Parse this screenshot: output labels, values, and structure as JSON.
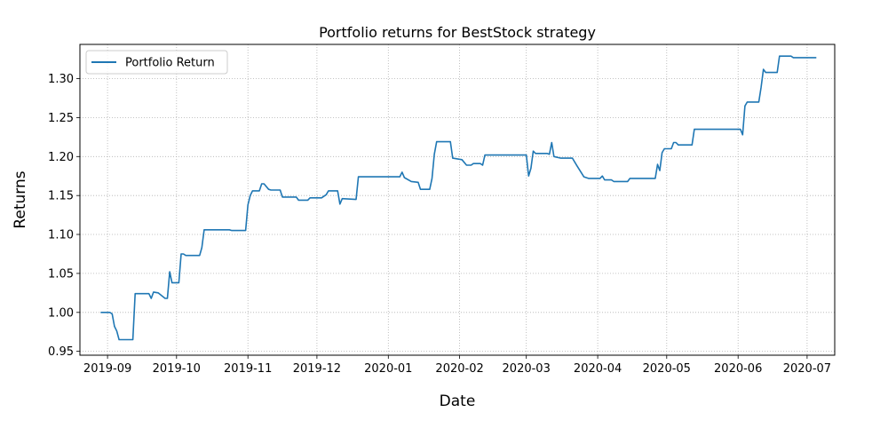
{
  "chart_data": {
    "type": "line",
    "title": "Portfolio returns for BestStock strategy",
    "xlabel": "Date",
    "ylabel": "Returns",
    "xlim": [
      "2019-08-20",
      "2020-07-13"
    ],
    "ylim": [
      0.945,
      1.344
    ],
    "yticks": [
      0.95,
      1.0,
      1.05,
      1.1,
      1.15,
      1.2,
      1.25,
      1.3
    ],
    "ytick_labels": [
      "0.95",
      "1.00",
      "1.05",
      "1.10",
      "1.15",
      "1.20",
      "1.25",
      "1.30"
    ],
    "xticks": [
      "2019-09-01",
      "2019-10-01",
      "2019-11-01",
      "2019-12-01",
      "2020-01-01",
      "2020-02-01",
      "2020-03-01",
      "2020-04-01",
      "2020-05-01",
      "2020-06-01",
      "2020-07-01"
    ],
    "xtick_labels": [
      "2019-09",
      "2019-10",
      "2019-11",
      "2019-12",
      "2020-01",
      "2020-02",
      "2020-03",
      "2020-04",
      "2020-05",
      "2020-06",
      "2020-07"
    ],
    "grid": true,
    "legend_position": "top-left",
    "series": [
      {
        "name": "Portfolio Return",
        "color": "#1f77b4",
        "points": [
          [
            "2019-08-29",
            1.0
          ],
          [
            "2019-09-02",
            1.0
          ],
          [
            "2019-09-03",
            0.998
          ],
          [
            "2019-09-04",
            0.982
          ],
          [
            "2019-09-05",
            0.976
          ],
          [
            "2019-09-06",
            0.965
          ],
          [
            "2019-09-09",
            0.965
          ],
          [
            "2019-09-12",
            0.965
          ],
          [
            "2019-09-13",
            1.024
          ],
          [
            "2019-09-16",
            1.024
          ],
          [
            "2019-09-19",
            1.024
          ],
          [
            "2019-09-20",
            1.018
          ],
          [
            "2019-09-21",
            1.026
          ],
          [
            "2019-09-23",
            1.025
          ],
          [
            "2019-09-26",
            1.018
          ],
          [
            "2019-09-27",
            1.018
          ],
          [
            "2019-09-28",
            1.052
          ],
          [
            "2019-09-29",
            1.038
          ],
          [
            "2019-10-01",
            1.038
          ],
          [
            "2019-10-02",
            1.038
          ],
          [
            "2019-10-03",
            1.075
          ],
          [
            "2019-10-04",
            1.075
          ],
          [
            "2019-10-05",
            1.073
          ],
          [
            "2019-10-08",
            1.073
          ],
          [
            "2019-10-11",
            1.073
          ],
          [
            "2019-10-12",
            1.083
          ],
          [
            "2019-10-13",
            1.106
          ],
          [
            "2019-10-17",
            1.106
          ],
          [
            "2019-10-24",
            1.106
          ],
          [
            "2019-10-25",
            1.105
          ],
          [
            "2019-10-31",
            1.105
          ],
          [
            "2019-11-01",
            1.138
          ],
          [
            "2019-11-02",
            1.15
          ],
          [
            "2019-11-03",
            1.156
          ],
          [
            "2019-11-06",
            1.156
          ],
          [
            "2019-11-07",
            1.165
          ],
          [
            "2019-11-08",
            1.165
          ],
          [
            "2019-11-10",
            1.158
          ],
          [
            "2019-11-11",
            1.157
          ],
          [
            "2019-11-15",
            1.157
          ],
          [
            "2019-11-16",
            1.148
          ],
          [
            "2019-11-22",
            1.148
          ],
          [
            "2019-11-23",
            1.144
          ],
          [
            "2019-11-27",
            1.144
          ],
          [
            "2019-11-28",
            1.147
          ],
          [
            "2019-12-03",
            1.147
          ],
          [
            "2019-12-05",
            1.151
          ],
          [
            "2019-12-06",
            1.156
          ],
          [
            "2019-12-10",
            1.156
          ],
          [
            "2019-12-11",
            1.139
          ],
          [
            "2019-12-12",
            1.146
          ],
          [
            "2019-12-18",
            1.145
          ],
          [
            "2019-12-19",
            1.174
          ],
          [
            "2020-01-06",
            1.174
          ],
          [
            "2020-01-07",
            1.18
          ],
          [
            "2020-01-08",
            1.173
          ],
          [
            "2020-01-11",
            1.168
          ],
          [
            "2020-01-14",
            1.167
          ],
          [
            "2020-01-15",
            1.158
          ],
          [
            "2020-01-19",
            1.158
          ],
          [
            "2020-01-20",
            1.172
          ],
          [
            "2020-01-21",
            1.203
          ],
          [
            "2020-01-22",
            1.219
          ],
          [
            "2020-01-28",
            1.219
          ],
          [
            "2020-01-29",
            1.198
          ],
          [
            "2020-02-02",
            1.196
          ],
          [
            "2020-02-04",
            1.189
          ],
          [
            "2020-02-06",
            1.189
          ],
          [
            "2020-02-07",
            1.191
          ],
          [
            "2020-02-10",
            1.191
          ],
          [
            "2020-02-11",
            1.189
          ],
          [
            "2020-02-12",
            1.202
          ],
          [
            "2020-02-15",
            1.202
          ],
          [
            "2020-03-01",
            1.202
          ],
          [
            "2020-03-02",
            1.175
          ],
          [
            "2020-03-03",
            1.185
          ],
          [
            "2020-03-04",
            1.207
          ],
          [
            "2020-03-05",
            1.204
          ],
          [
            "2020-03-10",
            1.204
          ],
          [
            "2020-03-11",
            1.203
          ],
          [
            "2020-03-12",
            1.218
          ],
          [
            "2020-03-13",
            1.2
          ],
          [
            "2020-03-16",
            1.198
          ],
          [
            "2020-03-21",
            1.198
          ],
          [
            "2020-03-23",
            1.188
          ],
          [
            "2020-03-26",
            1.174
          ],
          [
            "2020-03-28",
            1.172
          ],
          [
            "2020-04-02",
            1.172
          ],
          [
            "2020-04-03",
            1.175
          ],
          [
            "2020-04-04",
            1.17
          ],
          [
            "2020-04-07",
            1.17
          ],
          [
            "2020-04-08",
            1.168
          ],
          [
            "2020-04-14",
            1.168
          ],
          [
            "2020-04-15",
            1.172
          ],
          [
            "2020-04-26",
            1.172
          ],
          [
            "2020-04-27",
            1.19
          ],
          [
            "2020-04-28",
            1.182
          ],
          [
            "2020-04-29",
            1.205
          ],
          [
            "2020-04-30",
            1.21
          ],
          [
            "2020-05-03",
            1.21
          ],
          [
            "2020-05-04",
            1.218
          ],
          [
            "2020-05-05",
            1.218
          ],
          [
            "2020-05-06",
            1.215
          ],
          [
            "2020-05-12",
            1.215
          ],
          [
            "2020-05-13",
            1.235
          ],
          [
            "2020-06-02",
            1.235
          ],
          [
            "2020-06-03",
            1.228
          ],
          [
            "2020-06-04",
            1.265
          ],
          [
            "2020-06-05",
            1.27
          ],
          [
            "2020-06-10",
            1.27
          ],
          [
            "2020-06-11",
            1.289
          ],
          [
            "2020-06-12",
            1.312
          ],
          [
            "2020-06-13",
            1.308
          ],
          [
            "2020-06-18",
            1.308
          ],
          [
            "2020-06-19",
            1.329
          ],
          [
            "2020-06-24",
            1.329
          ],
          [
            "2020-06-25",
            1.327
          ],
          [
            "2020-07-05",
            1.327
          ]
        ]
      }
    ]
  }
}
